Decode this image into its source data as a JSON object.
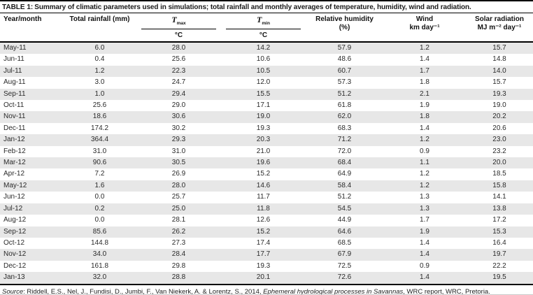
{
  "title": {
    "label": "TABLE 1:",
    "text": "Summary of climatic parameters used in simulations; total rainfall and monthly averages of temperature, humidity, wind and radiation."
  },
  "table": {
    "columns": [
      {
        "label": "Year/month"
      },
      {
        "label": "Total rainfall (mm)"
      },
      {
        "symbol": "T",
        "subscript": "max",
        "unit": "°C"
      },
      {
        "symbol": "T",
        "subscript": "min",
        "unit": "°C"
      },
      {
        "line1": "Relative humidity",
        "line2": "(%)"
      },
      {
        "line1": "Wind",
        "line2": "km day⁻¹"
      },
      {
        "line1": "Solar radiation",
        "line2": "MJ m⁻² day⁻¹"
      }
    ],
    "rows": [
      [
        "May-11",
        "6.0",
        "28.0",
        "14.2",
        "57.9",
        "1.2",
        "15.7"
      ],
      [
        "Jun-11",
        "0.4",
        "25.6",
        "10.6",
        "48.6",
        "1.4",
        "14.8"
      ],
      [
        "Jul-11",
        "1.2",
        "22.3",
        "10.5",
        "60.7",
        "1.7",
        "14.0"
      ],
      [
        "Aug-11",
        "3.0",
        "24.7",
        "12.0",
        "57.3",
        "1.8",
        "15.7"
      ],
      [
        "Sep-11",
        "1.0",
        "29.4",
        "15.5",
        "51.2",
        "2.1",
        "19.3"
      ],
      [
        "Oct-11",
        "25.6",
        "29.0",
        "17.1",
        "61.8",
        "1.9",
        "19.0"
      ],
      [
        "Nov-11",
        "18.6",
        "30.6",
        "19.0",
        "62.0",
        "1.8",
        "20.2"
      ],
      [
        "Dec-11",
        "174.2",
        "30.2",
        "19.3",
        "68.3",
        "1.4",
        "20.6"
      ],
      [
        "Jan-12",
        "364.4",
        "29.3",
        "20.3",
        "71.2",
        "1.2",
        "23.0"
      ],
      [
        "Feb-12",
        "31.0",
        "31.0",
        "21.0",
        "72.0",
        "0.9",
        "23.2"
      ],
      [
        "Mar-12",
        "90.6",
        "30.5",
        "19.6",
        "68.4",
        "1.1",
        "20.0"
      ],
      [
        "Apr-12",
        "7.2",
        "26.9",
        "15.2",
        "64.9",
        "1.2",
        "18.5"
      ],
      [
        "May-12",
        "1.6",
        "28.0",
        "14.6",
        "58.4",
        "1.2",
        "15.8"
      ],
      [
        "Jun-12",
        "0.0",
        "25.7",
        "11.7",
        "51.2",
        "1.3",
        "14.1"
      ],
      [
        "Jul-12",
        "0.2",
        "25.0",
        "11.8",
        "54.5",
        "1.3",
        "13.8"
      ],
      [
        "Aug-12",
        "0.0",
        "28.1",
        "12.6",
        "44.9",
        "1.7",
        "17.2"
      ],
      [
        "Sep-12",
        "85.6",
        "26.2",
        "15.2",
        "64.6",
        "1.9",
        "15.3"
      ],
      [
        "Oct-12",
        "144.8",
        "27.3",
        "17.4",
        "68.5",
        "1.4",
        "16.4"
      ],
      [
        "Nov-12",
        "34.0",
        "28.4",
        "17.7",
        "67.9",
        "1.4",
        "19.7"
      ],
      [
        "Dec-12",
        "161.8",
        "29.8",
        "19.3",
        "72.5",
        "0.9",
        "22.2"
      ],
      [
        "Jan-13",
        "32.0",
        "28.8",
        "20.1",
        "72.6",
        "1.4",
        "19.5"
      ]
    ]
  },
  "chart_data": {
    "type": "table",
    "title": "TABLE 1: Summary of climatic parameters used in simulations; total rainfall and monthly averages of temperature, humidity, wind and radiation.",
    "columns": [
      "Year/month",
      "Total rainfall (mm)",
      "Tmax °C",
      "Tmin °C",
      "Relative humidity (%)",
      "Wind km day⁻¹",
      "Solar radiation MJ m⁻² day⁻¹"
    ],
    "months": [
      "May-11",
      "Jun-11",
      "Jul-11",
      "Aug-11",
      "Sep-11",
      "Oct-11",
      "Nov-11",
      "Dec-11",
      "Jan-12",
      "Feb-12",
      "Mar-12",
      "Apr-12",
      "May-12",
      "Jun-12",
      "Jul-12",
      "Aug-12",
      "Sep-12",
      "Oct-12",
      "Nov-12",
      "Dec-12",
      "Jan-13"
    ],
    "total_rainfall_mm": [
      6.0,
      0.4,
      1.2,
      3.0,
      1.0,
      25.6,
      18.6,
      174.2,
      364.4,
      31.0,
      90.6,
      7.2,
      1.6,
      0.0,
      0.2,
      0.0,
      85.6,
      144.8,
      34.0,
      161.8,
      32.0
    ],
    "tmax_c": [
      28.0,
      25.6,
      22.3,
      24.7,
      29.4,
      29.0,
      30.6,
      30.2,
      29.3,
      31.0,
      30.5,
      26.9,
      28.0,
      25.7,
      25.0,
      28.1,
      26.2,
      27.3,
      28.4,
      29.8,
      28.8
    ],
    "tmin_c": [
      14.2,
      10.6,
      10.5,
      12.0,
      15.5,
      17.1,
      19.0,
      19.3,
      20.3,
      21.0,
      19.6,
      15.2,
      14.6,
      11.7,
      11.8,
      12.6,
      15.2,
      17.4,
      17.7,
      19.3,
      20.1
    ],
    "relative_humidity_pct": [
      57.9,
      48.6,
      60.7,
      57.3,
      51.2,
      61.8,
      62.0,
      68.3,
      71.2,
      72.0,
      68.4,
      64.9,
      58.4,
      51.2,
      54.5,
      44.9,
      64.6,
      68.5,
      67.9,
      72.5,
      72.6
    ],
    "wind_km_day": [
      1.2,
      1.4,
      1.7,
      1.8,
      2.1,
      1.9,
      1.8,
      1.4,
      1.2,
      0.9,
      1.1,
      1.2,
      1.2,
      1.3,
      1.3,
      1.7,
      1.9,
      1.4,
      1.4,
      0.9,
      1.4
    ],
    "solar_radiation_mj_m2_day": [
      15.7,
      14.8,
      14.0,
      15.7,
      19.3,
      19.0,
      20.2,
      20.6,
      23.0,
      23.2,
      20.0,
      18.5,
      15.8,
      14.1,
      13.8,
      17.2,
      15.3,
      16.4,
      19.7,
      22.2,
      19.5
    ]
  },
  "source": {
    "prefix": "Source",
    "mid": ": Riddell, E.S., Nel, J., Fundisi, D., Jumbi, F., Van Niekerk, A. & Lorentz, S., 2014, ",
    "italic_title": "Ephemeral hydrological processes in Savannas",
    "suffix": ", WRC report, WRC, Pretoria."
  }
}
